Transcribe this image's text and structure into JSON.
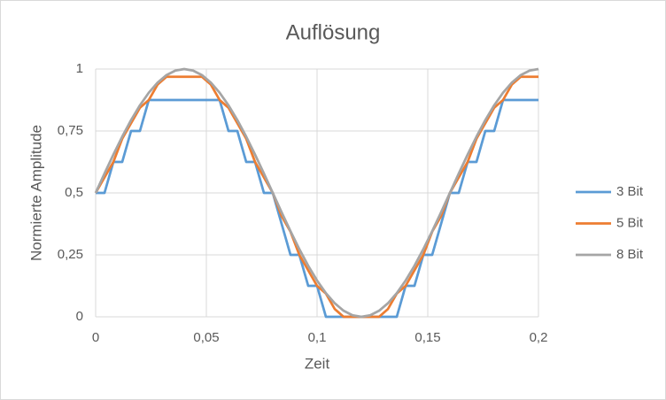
{
  "chart_data": {
    "type": "line",
    "title": "Auflösung",
    "x_label": "Zeit",
    "y_label": "Normierte Amplitude",
    "x": [
      0,
      0.004,
      0.008,
      0.012,
      0.016,
      0.02,
      0.024,
      0.028,
      0.032,
      0.036,
      0.04,
      0.044,
      0.048,
      0.052,
      0.056,
      0.06,
      0.064,
      0.068,
      0.072,
      0.076,
      0.08,
      0.084,
      0.088,
      0.092,
      0.096,
      0.1,
      0.104,
      0.108,
      0.112,
      0.116,
      0.12,
      0.124,
      0.128,
      0.132,
      0.136,
      0.14,
      0.144,
      0.148,
      0.152,
      0.156,
      0.16,
      0.164,
      0.168,
      0.172,
      0.176,
      0.18,
      0.184,
      0.188,
      0.192,
      0.196,
      0.2
    ],
    "series": [
      {
        "name": "3 Bit",
        "color": "#5b9bd5",
        "values": [
          0.5,
          0.5,
          0.625,
          0.625,
          0.75,
          0.75,
          0.875,
          0.875,
          0.875,
          0.875,
          0.875,
          0.875,
          0.875,
          0.875,
          0.875,
          0.75,
          0.75,
          0.625,
          0.625,
          0.5,
          0.5,
          0.375,
          0.25,
          0.25,
          0.125,
          0.125,
          0,
          0,
          0,
          0,
          0,
          0,
          0,
          0,
          0,
          0.125,
          0.125,
          0.25,
          0.25,
          0.375,
          0.5,
          0.5,
          0.625,
          0.625,
          0.75,
          0.75,
          0.875,
          0.875,
          0.875,
          0.875,
          0.875
        ]
      },
      {
        "name": "5 Bit",
        "color": "#ed7d31",
        "values": [
          0.5,
          0.5625,
          0.625,
          0.71875,
          0.78125,
          0.84375,
          0.875,
          0.9375,
          0.96875,
          0.96875,
          0.96875,
          0.96875,
          0.96875,
          0.9375,
          0.875,
          0.84375,
          0.78125,
          0.71875,
          0.625,
          0.5625,
          0.5,
          0.40625,
          0.34375,
          0.25,
          0.1875,
          0.125,
          0.09375,
          0.03125,
          0,
          0,
          0,
          0,
          0,
          0.03125,
          0.09375,
          0.125,
          0.1875,
          0.25,
          0.34375,
          0.40625,
          0.5,
          0.5625,
          0.625,
          0.71875,
          0.78125,
          0.84375,
          0.875,
          0.9375,
          0.96875,
          0.96875,
          0.96875
        ]
      },
      {
        "name": "8 Bit",
        "color": "#a5a5a5",
        "values": [
          0.5,
          0.5782,
          0.6545,
          0.727,
          0.7939,
          0.8536,
          0.9045,
          0.9455,
          0.9755,
          0.9938,
          1,
          0.9938,
          0.9755,
          0.9455,
          0.9045,
          0.8536,
          0.7939,
          0.727,
          0.6545,
          0.5782,
          0.5,
          0.4218,
          0.3455,
          0.273,
          0.2061,
          0.1464,
          0.0955,
          0.0545,
          0.0245,
          0.0062,
          0,
          0.0062,
          0.0245,
          0.0545,
          0.0955,
          0.1464,
          0.2061,
          0.273,
          0.3455,
          0.4218,
          0.5,
          0.5782,
          0.6545,
          0.727,
          0.7939,
          0.8536,
          0.9045,
          0.9455,
          0.9755,
          0.9938,
          1
        ]
      }
    ],
    "xlim": [
      0,
      0.2
    ],
    "xticks": [
      0,
      {
        "value": 0.05,
        "label": "0,05"
      },
      {
        "value": 0.1,
        "label": "0,1"
      },
      {
        "value": 0.15,
        "label": "0,15"
      },
      {
        "value": 0.2,
        "label": "0,2"
      }
    ],
    "ylim": [
      0,
      1
    ],
    "yticks": [
      0,
      {
        "value": 0.25,
        "label": "0,25"
      },
      {
        "value": 0.5,
        "label": "0,5"
      },
      {
        "value": 0.75,
        "label": "0,75"
      },
      1
    ],
    "grid": true,
    "legend": "right"
  }
}
